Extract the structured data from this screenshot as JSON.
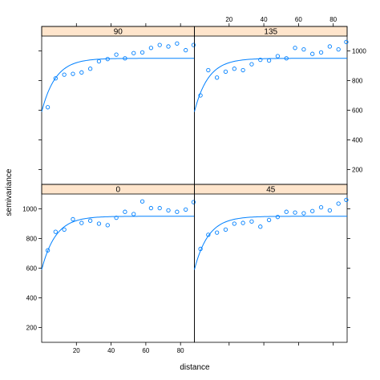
{
  "chart_data": {
    "type": "scatter",
    "subtype": "trellis-variogram",
    "xlabel": "distance",
    "ylabel": "semivariance",
    "xlim": [
      0,
      88
    ],
    "ylim": [
      100,
      1100
    ],
    "x_ticks": [
      20,
      40,
      60,
      80
    ],
    "y_ticks": [
      200,
      400,
      600,
      800,
      1000
    ],
    "strip_color": "#ffe5cc",
    "point_color": "#0080ff",
    "line_color": "#0080ff",
    "model": {
      "nugget": 590,
      "sill": 950,
      "range_param": 8
    },
    "panels": [
      {
        "label": "90",
        "x": [
          3.5,
          8,
          13,
          18,
          23,
          28,
          33,
          38,
          43,
          48,
          53,
          58,
          63,
          68,
          73,
          78,
          83,
          87.5
        ],
        "y": [
          620,
          815,
          840,
          845,
          855,
          880,
          930,
          945,
          975,
          950,
          985,
          990,
          1020,
          1040,
          1030,
          1050,
          1005,
          1040
        ]
      },
      {
        "label": "135",
        "x": [
          3.5,
          8,
          13,
          18,
          23,
          28,
          33,
          38,
          43,
          48,
          53,
          58,
          63,
          68,
          73,
          78,
          83,
          87.5
        ],
        "y": [
          700,
          870,
          820,
          860,
          880,
          870,
          910,
          940,
          935,
          965,
          950,
          1020,
          1010,
          980,
          990,
          1030,
          1010,
          1060
        ]
      },
      {
        "label": "0",
        "x": [
          3.5,
          8,
          13,
          18,
          23,
          28,
          33,
          38,
          43,
          48,
          53,
          58,
          63,
          68,
          73,
          78,
          83,
          87.5
        ],
        "y": [
          720,
          845,
          860,
          930,
          905,
          920,
          900,
          890,
          940,
          980,
          965,
          1050,
          1005,
          1005,
          990,
          980,
          995,
          1045
        ]
      },
      {
        "label": "45",
        "x": [
          3.5,
          8,
          13,
          18,
          23,
          28,
          33,
          38,
          43,
          48,
          53,
          58,
          63,
          68,
          73,
          78,
          83,
          87.5
        ],
        "y": [
          730,
          825,
          840,
          860,
          900,
          905,
          915,
          880,
          925,
          945,
          980,
          975,
          970,
          985,
          1010,
          990,
          1035,
          1060
        ]
      }
    ]
  }
}
